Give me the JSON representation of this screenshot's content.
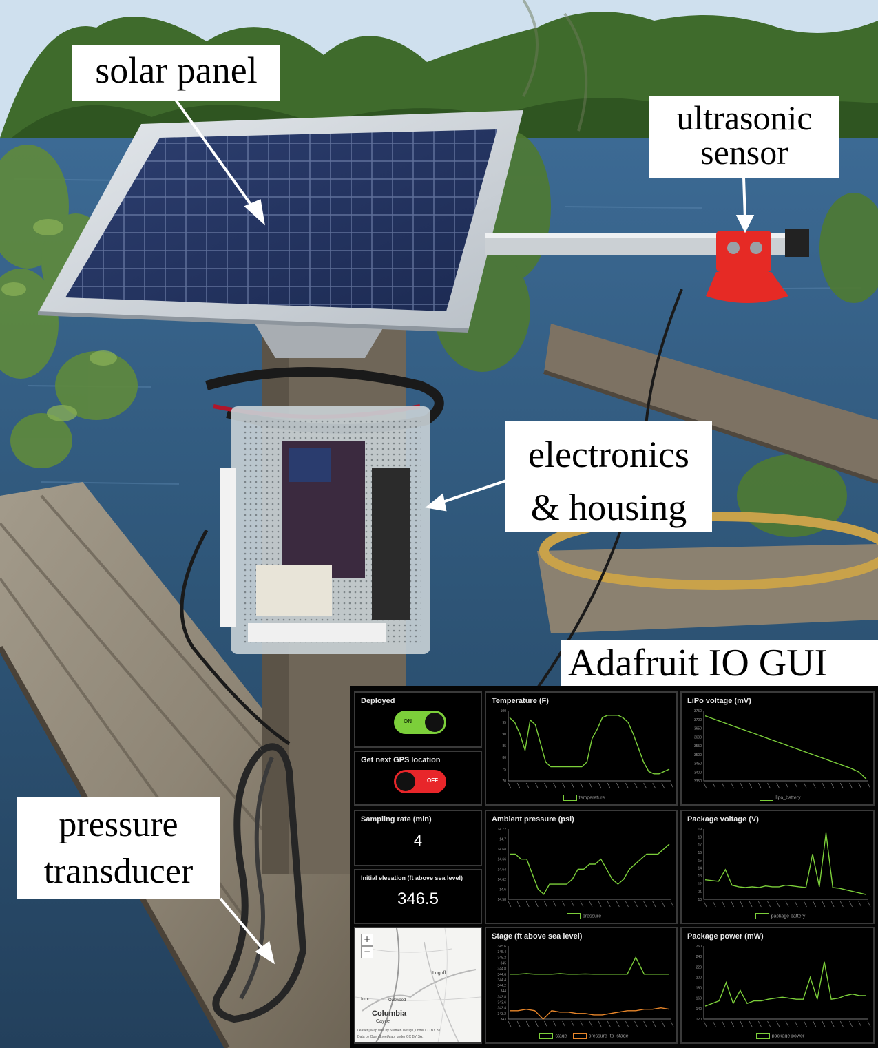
{
  "labels": {
    "solar_panel": "solar panel",
    "ultrasonic_line1": "ultrasonic",
    "ultrasonic_line2": "sensor",
    "electronics_line1": "electronics",
    "electronics_line2": "& housing",
    "pressure_line1": "pressure",
    "pressure_line2": "transducer",
    "adafruit": "Adafruit IO GUI"
  },
  "dashboard": {
    "deployed": {
      "title": "Deployed",
      "state": "ON",
      "color": "#7ccf3a"
    },
    "gps": {
      "title": "Get next GPS location",
      "state": "OFF",
      "color": "#e8262a"
    },
    "sampling": {
      "title": "Sampling rate (min)",
      "value": "4"
    },
    "elevation": {
      "title": "Initial elevation (ft above sea level)",
      "value": "346.5"
    },
    "map": {
      "zoom_in": "+",
      "zoom_out": "−",
      "places": [
        "Lugoff",
        "Columbia",
        "Cayce",
        "Irmo",
        "Oakwood"
      ],
      "attribution1": "Leaflet | Map tiles by Stamen Design, under CC BY 3.0.",
      "attribution2": "Data by OpenStreetMap, under CC BY SA."
    },
    "temperature": {
      "title": "Temperature (F)",
      "legend": [
        "temperature"
      ]
    },
    "lipo": {
      "title": "LiPo voltage (mV)",
      "legend": [
        "lipo_battery"
      ]
    },
    "ambient": {
      "title": "Ambient pressure (psi)",
      "legend": [
        "pressure"
      ]
    },
    "package_voltage": {
      "title": "Package voltage (V)",
      "legend": [
        "package battery"
      ]
    },
    "stage": {
      "title": "Stage (ft above sea level)",
      "legend": [
        "stage",
        "pressure_to_stage"
      ]
    },
    "package_power": {
      "title": "Package power (mW)",
      "legend": [
        "package power"
      ]
    }
  },
  "chart_data": [
    {
      "type": "line",
      "title": "Temperature (F)",
      "ylim": [
        70,
        100
      ],
      "yticks": [
        70,
        75,
        80,
        85,
        90,
        95,
        100
      ],
      "series": [
        {
          "name": "temperature",
          "values": [
            97,
            95,
            90,
            83,
            96,
            94,
            86,
            78,
            76,
            76,
            76,
            76,
            76,
            76,
            76,
            78,
            88,
            92,
            97,
            98,
            98,
            98,
            97,
            95,
            90,
            84,
            78,
            74,
            73,
            73,
            74,
            75
          ]
        }
      ]
    },
    {
      "type": "line",
      "title": "LiPo voltage (mV)",
      "ylim": [
        3350,
        3750
      ],
      "yticks": [
        3350,
        3400,
        3450,
        3500,
        3550,
        3600,
        3650,
        3700,
        3750
      ],
      "series": [
        {
          "name": "lipo_battery",
          "values": [
            3720,
            3705,
            3690,
            3675,
            3660,
            3645,
            3630,
            3615,
            3600,
            3585,
            3570,
            3555,
            3540,
            3525,
            3510,
            3495,
            3480,
            3465,
            3450,
            3435,
            3420,
            3400,
            3360
          ]
        }
      ]
    },
    {
      "type": "line",
      "title": "Ambient pressure (psi)",
      "ylim": [
        14.58,
        14.72
      ],
      "yticks": [
        14.58,
        14.6,
        14.62,
        14.64,
        14.66,
        14.68,
        14.7,
        14.72
      ],
      "series": [
        {
          "name": "pressure",
          "values": [
            14.67,
            14.67,
            14.66,
            14.66,
            14.63,
            14.6,
            14.59,
            14.61,
            14.61,
            14.61,
            14.61,
            14.62,
            14.64,
            14.64,
            14.65,
            14.65,
            14.66,
            14.64,
            14.62,
            14.61,
            14.62,
            14.64,
            14.65,
            14.66,
            14.67,
            14.67,
            14.67,
            14.68,
            14.69
          ]
        }
      ]
    },
    {
      "type": "line",
      "title": "Package voltage (V)",
      "ylim": [
        10,
        19
      ],
      "yticks": [
        10,
        11,
        12,
        13,
        14,
        15,
        16,
        17,
        18,
        19
      ],
      "series": [
        {
          "name": "package battery",
          "values": [
            12.5,
            12.4,
            12.3,
            13.8,
            11.8,
            11.6,
            11.5,
            11.6,
            11.5,
            11.7,
            11.6,
            11.6,
            11.8,
            11.7,
            11.6,
            11.5,
            15.8,
            11.6,
            18.5,
            11.5,
            11.4,
            11.2,
            11.0,
            10.8,
            10.6
          ]
        }
      ]
    },
    {
      "type": "line",
      "title": "Stage (ft above sea level)",
      "ylim": [
        343.0,
        345.6
      ],
      "yticks": [
        343.0,
        343.2,
        343.4,
        343.6,
        343.8,
        344.0,
        344.2,
        344.4,
        344.6,
        344.8,
        345.0,
        345.2,
        345.4,
        345.6
      ],
      "series": [
        {
          "name": "stage",
          "values": [
            344.6,
            344.6,
            344.62,
            344.6,
            344.6,
            344.6,
            344.62,
            344.6,
            344.6,
            344.61,
            344.6,
            344.6,
            344.6,
            344.6,
            344.6,
            345.2,
            344.6,
            344.6,
            344.6,
            344.6
          ]
        },
        {
          "name": "pressure_to_stage",
          "values": [
            343.3,
            343.3,
            343.35,
            343.3,
            343.0,
            343.3,
            343.25,
            343.25,
            343.2,
            343.2,
            343.15,
            343.15,
            343.2,
            343.25,
            343.3,
            343.3,
            343.35,
            343.35,
            343.4,
            343.35
          ]
        }
      ]
    },
    {
      "type": "line",
      "title": "Package power (mW)",
      "ylim": [
        120,
        260
      ],
      "yticks": [
        120,
        140,
        160,
        180,
        200,
        220,
        240,
        260
      ],
      "series": [
        {
          "name": "package power",
          "values": [
            145,
            150,
            155,
            190,
            150,
            175,
            150,
            155,
            155,
            158,
            160,
            162,
            160,
            158,
            158,
            200,
            158,
            230,
            158,
            160,
            165,
            168,
            165,
            165
          ]
        }
      ]
    }
  ]
}
